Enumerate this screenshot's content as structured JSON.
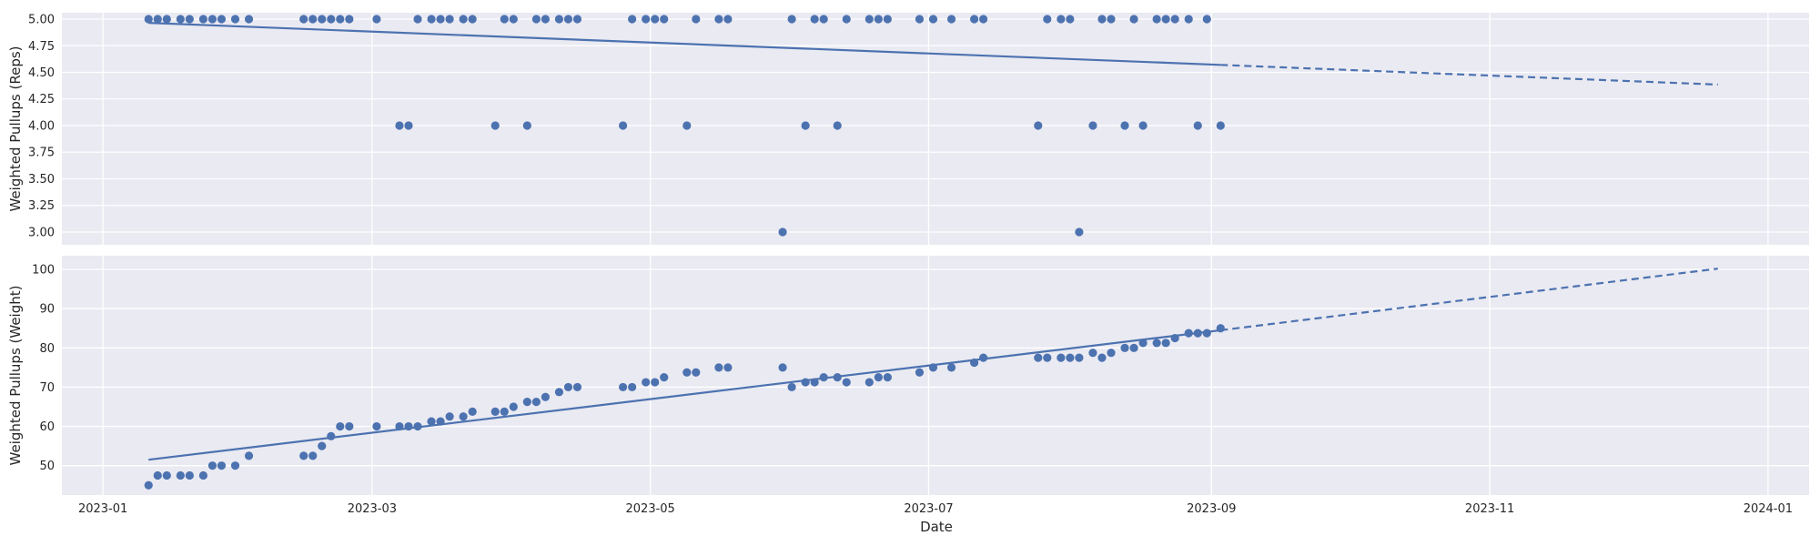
{
  "chart_data": [
    {
      "type": "scatter",
      "ylabel": "Weighted Pullups (Reps)",
      "ylim": [
        2.88,
        5.06
      ],
      "yticks": [
        "3.00",
        "3.25",
        "3.50",
        "3.75",
        "4.00",
        "4.25",
        "4.50",
        "4.75",
        "5.00"
      ],
      "ytick_values": [
        3.0,
        3.25,
        3.5,
        3.75,
        4.0,
        4.25,
        4.5,
        4.75,
        5.0
      ],
      "grid": true,
      "points": {
        "x": [
          "2023-01-11",
          "2023-01-13",
          "2023-01-15",
          "2023-01-18",
          "2023-01-20",
          "2023-01-23",
          "2023-01-25",
          "2023-01-27",
          "2023-01-30",
          "2023-02-02",
          "2023-02-14",
          "2023-02-16",
          "2023-02-18",
          "2023-02-20",
          "2023-02-22",
          "2023-02-24",
          "2023-03-02",
          "2023-03-07",
          "2023-03-09",
          "2023-03-11",
          "2023-03-14",
          "2023-03-16",
          "2023-03-18",
          "2023-03-21",
          "2023-03-23",
          "2023-03-28",
          "2023-03-30",
          "2023-04-01",
          "2023-04-04",
          "2023-04-06",
          "2023-04-08",
          "2023-04-11",
          "2023-04-13",
          "2023-04-15",
          "2023-04-25",
          "2023-04-27",
          "2023-04-30",
          "2023-05-02",
          "2023-05-04",
          "2023-05-09",
          "2023-05-11",
          "2023-05-16",
          "2023-05-18",
          "2023-05-30",
          "2023-06-01",
          "2023-06-04",
          "2023-06-06",
          "2023-06-08",
          "2023-06-11",
          "2023-06-13",
          "2023-06-18",
          "2023-06-20",
          "2023-06-22",
          "2023-06-29",
          "2023-07-02",
          "2023-07-06",
          "2023-07-11",
          "2023-07-13",
          "2023-07-25",
          "2023-07-27",
          "2023-07-30",
          "2023-08-01",
          "2023-08-03",
          "2023-08-06",
          "2023-08-08",
          "2023-08-10",
          "2023-08-13",
          "2023-08-15",
          "2023-08-17",
          "2023-08-20",
          "2023-08-22",
          "2023-08-24",
          "2023-08-27",
          "2023-08-29",
          "2023-08-31",
          "2023-09-03"
        ],
        "y": [
          5,
          5,
          5,
          5,
          5,
          5,
          5,
          5,
          5,
          5,
          5,
          5,
          5,
          5,
          5,
          5,
          5,
          4,
          4,
          5,
          5,
          5,
          5,
          5,
          5,
          4,
          5,
          5,
          4,
          5,
          5,
          5,
          5,
          5,
          4,
          5,
          5,
          5,
          5,
          4,
          5,
          5,
          5,
          3,
          5,
          4,
          5,
          5,
          4,
          5,
          5,
          5,
          5,
          5,
          5,
          5,
          5,
          5,
          4,
          5,
          5,
          5,
          3,
          4,
          5,
          5,
          4,
          5,
          4,
          5,
          5,
          5,
          5,
          4,
          5,
          4
        ]
      },
      "trend": {
        "solid": [
          [
            "2023-01-11",
            4.965
          ],
          [
            "2023-09-03",
            4.57
          ]
        ],
        "dashed": [
          [
            "2023-09-03",
            4.57
          ],
          [
            "2023-12-21",
            4.385
          ]
        ]
      }
    },
    {
      "type": "scatter",
      "ylabel": "Weighted Pullups (Weight)",
      "xlabel": "Date",
      "ylim": [
        42.5,
        103.5
      ],
      "yticks": [
        "50",
        "60",
        "70",
        "80",
        "90",
        "100"
      ],
      "ytick_values": [
        50,
        60,
        70,
        80,
        90,
        100
      ],
      "xticks": [
        "2023-01",
        "2023-03",
        "2023-05",
        "2023-07",
        "2023-09",
        "2023-11",
        "2024-01"
      ],
      "xtick_values": [
        "2023-01-01",
        "2023-03-01",
        "2023-05-01",
        "2023-07-01",
        "2023-09-01",
        "2023-11-01",
        "2024-01-01"
      ],
      "grid": true,
      "points": {
        "x": [
          "2023-01-11",
          "2023-01-13",
          "2023-01-15",
          "2023-01-18",
          "2023-01-20",
          "2023-01-23",
          "2023-01-25",
          "2023-01-27",
          "2023-01-30",
          "2023-02-02",
          "2023-02-14",
          "2023-02-16",
          "2023-02-18",
          "2023-02-20",
          "2023-02-22",
          "2023-02-24",
          "2023-03-02",
          "2023-03-07",
          "2023-03-09",
          "2023-03-11",
          "2023-03-14",
          "2023-03-16",
          "2023-03-18",
          "2023-03-21",
          "2023-03-23",
          "2023-03-28",
          "2023-03-30",
          "2023-04-01",
          "2023-04-04",
          "2023-04-06",
          "2023-04-08",
          "2023-04-11",
          "2023-04-13",
          "2023-04-15",
          "2023-04-25",
          "2023-04-27",
          "2023-04-30",
          "2023-05-02",
          "2023-05-04",
          "2023-05-09",
          "2023-05-11",
          "2023-05-16",
          "2023-05-18",
          "2023-05-30",
          "2023-06-01",
          "2023-06-04",
          "2023-06-06",
          "2023-06-08",
          "2023-06-11",
          "2023-06-13",
          "2023-06-18",
          "2023-06-20",
          "2023-06-22",
          "2023-06-29",
          "2023-07-02",
          "2023-07-06",
          "2023-07-11",
          "2023-07-13",
          "2023-07-25",
          "2023-07-27",
          "2023-07-30",
          "2023-08-01",
          "2023-08-03",
          "2023-08-06",
          "2023-08-08",
          "2023-08-10",
          "2023-08-13",
          "2023-08-15",
          "2023-08-17",
          "2023-08-20",
          "2023-08-22",
          "2023-08-24",
          "2023-08-27",
          "2023-08-29",
          "2023-08-31",
          "2023-09-03"
        ],
        "y": [
          45,
          47.5,
          47.5,
          47.5,
          47.5,
          47.5,
          50,
          50,
          50,
          52.5,
          52.5,
          52.5,
          55,
          57.5,
          60,
          60,
          60,
          60,
          60,
          60,
          61.25,
          61.25,
          62.5,
          62.5,
          63.75,
          63.75,
          63.75,
          65,
          66.25,
          66.25,
          67.5,
          68.75,
          70,
          70,
          70,
          70,
          71.25,
          71.25,
          72.5,
          73.75,
          73.75,
          75,
          75,
          75,
          70,
          71.25,
          71.25,
          72.5,
          72.5,
          71.25,
          71.25,
          72.5,
          72.5,
          73.75,
          75,
          75,
          76.25,
          77.5,
          77.5,
          77.5,
          77.5,
          77.5,
          77.5,
          78.75,
          77.5,
          78.75,
          80,
          80,
          81.25,
          81.25,
          81.25,
          82.5,
          83.75,
          83.75,
          83.75,
          85
        ]
      },
      "trend": {
        "solid": [
          [
            "2023-01-11",
            51.5
          ],
          [
            "2023-09-03",
            84.5
          ]
        ],
        "dashed": [
          [
            "2023-09-03",
            84.5
          ],
          [
            "2023-12-21",
            100.2
          ]
        ]
      }
    }
  ]
}
